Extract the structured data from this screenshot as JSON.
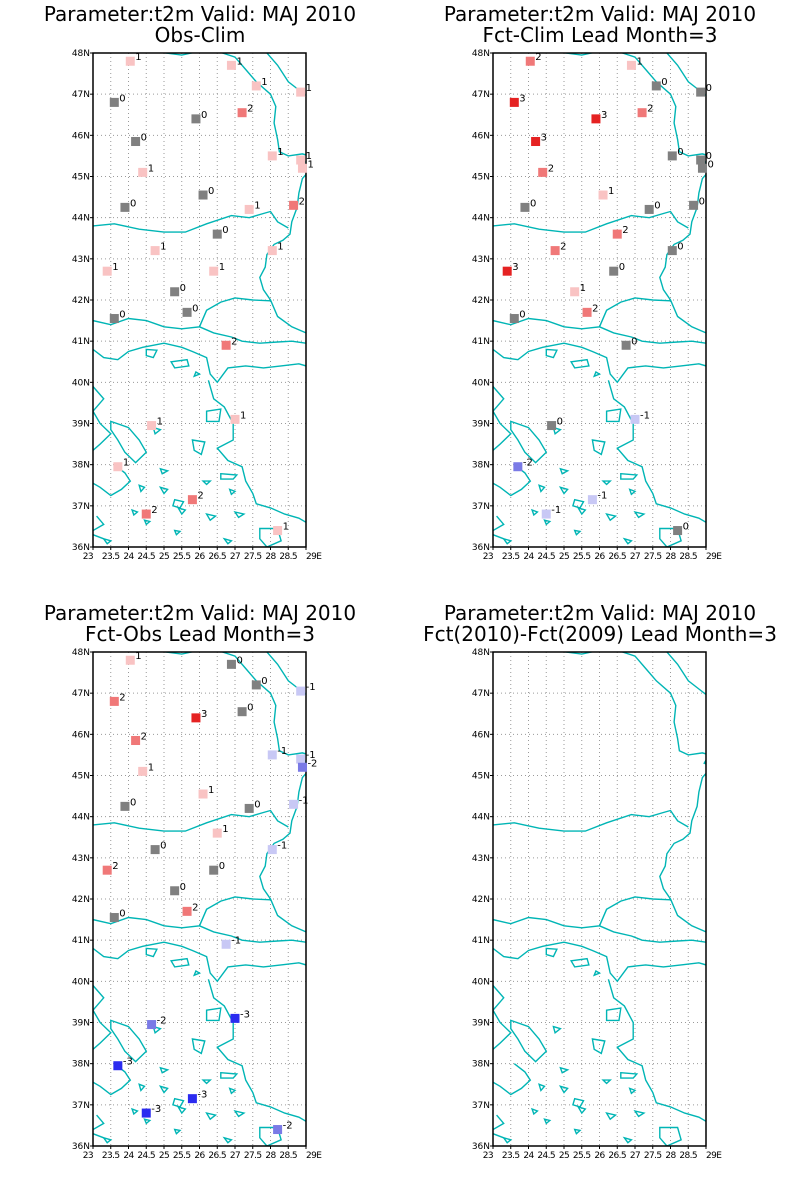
{
  "colors": {
    "coast": "#00b5b5",
    "grid": "#9a9a9a",
    "frame": "#000000",
    "zero": "#808080",
    "pos1": "#f9c3c3",
    "pos2": "#f07878",
    "pos3": "#e52222",
    "neg1": "#c8c8f5",
    "neg2": "#7a7ae6",
    "neg3": "#2b2bf0"
  },
  "axes": {
    "lat_labels": [
      "36N",
      "37N",
      "38N",
      "39N",
      "40N",
      "41N",
      "42N",
      "43N",
      "44N",
      "45N",
      "46N",
      "47N",
      "48N"
    ],
    "lon_labels": [
      "23",
      "23.5",
      "24",
      "24.5",
      "25",
      "25.5",
      "26",
      "26.5",
      "27",
      "27.5",
      "28",
      "28.5",
      "29E"
    ],
    "lat_range": [
      36,
      48
    ],
    "lon_range": [
      23,
      29
    ]
  },
  "panels": [
    {
      "title1": "Parameter:t2m Valid: MAJ 2010",
      "title2": "Obs-Clim",
      "stations": [
        {
          "lon": 24.05,
          "lat": 47.8,
          "v": 1
        },
        {
          "lon": 26.9,
          "lat": 47.7,
          "v": 1
        },
        {
          "lon": 27.6,
          "lat": 47.2,
          "v": 1
        },
        {
          "lon": 28.85,
          "lat": 47.05,
          "v": 1
        },
        {
          "lon": 23.6,
          "lat": 46.8,
          "v": 0
        },
        {
          "lon": 25.9,
          "lat": 46.4,
          "v": 0
        },
        {
          "lon": 27.2,
          "lat": 46.55,
          "v": 2
        },
        {
          "lon": 24.2,
          "lat": 45.85,
          "v": 0
        },
        {
          "lon": 28.05,
          "lat": 45.5,
          "v": 1
        },
        {
          "lon": 28.85,
          "lat": 45.4,
          "v": 1
        },
        {
          "lon": 28.9,
          "lat": 45.2,
          "v": 1
        },
        {
          "lon": 24.4,
          "lat": 45.1,
          "v": 1
        },
        {
          "lon": 26.1,
          "lat": 44.55,
          "v": 0
        },
        {
          "lon": 23.9,
          "lat": 44.25,
          "v": 0
        },
        {
          "lon": 27.4,
          "lat": 44.2,
          "v": 1
        },
        {
          "lon": 28.65,
          "lat": 44.3,
          "v": 2
        },
        {
          "lon": 26.5,
          "lat": 43.6,
          "v": 0
        },
        {
          "lon": 24.75,
          "lat": 43.2,
          "v": 1
        },
        {
          "lon": 28.05,
          "lat": 43.2,
          "v": 1
        },
        {
          "lon": 23.4,
          "lat": 42.7,
          "v": 1
        },
        {
          "lon": 26.4,
          "lat": 42.7,
          "v": 1
        },
        {
          "lon": 25.3,
          "lat": 42.2,
          "v": 0
        },
        {
          "lon": 25.65,
          "lat": 41.7,
          "v": 0
        },
        {
          "lon": 23.6,
          "lat": 41.55,
          "v": 0
        },
        {
          "lon": 26.75,
          "lat": 40.9,
          "v": 2
        },
        {
          "lon": 24.65,
          "lat": 38.95,
          "v": 1
        },
        {
          "lon": 27.0,
          "lat": 39.1,
          "v": 1
        },
        {
          "lon": 23.7,
          "lat": 37.95,
          "v": 1
        },
        {
          "lon": 25.8,
          "lat": 37.15,
          "v": 2
        },
        {
          "lon": 24.5,
          "lat": 36.8,
          "v": 2
        },
        {
          "lon": 28.2,
          "lat": 36.4,
          "v": 1
        }
      ]
    },
    {
      "title1": "Parameter:t2m Valid: MAJ 2010",
      "title2": "Fct-Clim Lead Month=3",
      "stations": [
        {
          "lon": 24.05,
          "lat": 47.8,
          "v": 2
        },
        {
          "lon": 26.9,
          "lat": 47.7,
          "v": 1
        },
        {
          "lon": 27.6,
          "lat": 47.2,
          "v": 0
        },
        {
          "lon": 28.85,
          "lat": 47.05,
          "v": 0
        },
        {
          "lon": 23.6,
          "lat": 46.8,
          "v": 3
        },
        {
          "lon": 25.9,
          "lat": 46.4,
          "v": 3
        },
        {
          "lon": 27.2,
          "lat": 46.55,
          "v": 2
        },
        {
          "lon": 24.2,
          "lat": 45.85,
          "v": 3
        },
        {
          "lon": 28.05,
          "lat": 45.5,
          "v": 0
        },
        {
          "lon": 28.85,
          "lat": 45.4,
          "v": 0
        },
        {
          "lon": 28.9,
          "lat": 45.2,
          "v": 0
        },
        {
          "lon": 24.4,
          "lat": 45.1,
          "v": 2
        },
        {
          "lon": 26.1,
          "lat": 44.55,
          "v": 1
        },
        {
          "lon": 23.9,
          "lat": 44.25,
          "v": 0
        },
        {
          "lon": 27.4,
          "lat": 44.2,
          "v": 0
        },
        {
          "lon": 28.65,
          "lat": 44.3,
          "v": 0
        },
        {
          "lon": 26.5,
          "lat": 43.6,
          "v": 2
        },
        {
          "lon": 24.75,
          "lat": 43.2,
          "v": 2
        },
        {
          "lon": 28.05,
          "lat": 43.2,
          "v": 0
        },
        {
          "lon": 23.4,
          "lat": 42.7,
          "v": 3
        },
        {
          "lon": 26.4,
          "lat": 42.7,
          "v": 0
        },
        {
          "lon": 25.3,
          "lat": 42.2,
          "v": 1
        },
        {
          "lon": 25.65,
          "lat": 41.7,
          "v": 2
        },
        {
          "lon": 23.6,
          "lat": 41.55,
          "v": 0
        },
        {
          "lon": 26.75,
          "lat": 40.9,
          "v": 0
        },
        {
          "lon": 24.65,
          "lat": 38.95,
          "v": 0
        },
        {
          "lon": 27.0,
          "lat": 39.1,
          "v": -1
        },
        {
          "lon": 23.7,
          "lat": 37.95,
          "v": -2
        },
        {
          "lon": 25.8,
          "lat": 37.15,
          "v": -1
        },
        {
          "lon": 24.5,
          "lat": 36.8,
          "v": -1
        },
        {
          "lon": 28.2,
          "lat": 36.4,
          "v": 0
        }
      ]
    },
    {
      "title1": "Parameter:t2m Valid: MAJ 2010",
      "title2": "Fct-Obs Lead Month=3",
      "stations": [
        {
          "lon": 24.05,
          "lat": 47.8,
          "v": 1
        },
        {
          "lon": 26.9,
          "lat": 47.7,
          "v": 0
        },
        {
          "lon": 27.6,
          "lat": 47.2,
          "v": 0
        },
        {
          "lon": 28.85,
          "lat": 47.05,
          "v": -1
        },
        {
          "lon": 23.6,
          "lat": 46.8,
          "v": 2
        },
        {
          "lon": 25.9,
          "lat": 46.4,
          "v": 3
        },
        {
          "lon": 27.2,
          "lat": 46.55,
          "v": 0
        },
        {
          "lon": 24.2,
          "lat": 45.85,
          "v": 2
        },
        {
          "lon": 28.05,
          "lat": 45.5,
          "v": -1
        },
        {
          "lon": 28.85,
          "lat": 45.4,
          "v": -1
        },
        {
          "lon": 28.9,
          "lat": 45.2,
          "v": -2
        },
        {
          "lon": 24.4,
          "lat": 45.1,
          "v": 1
        },
        {
          "lon": 26.1,
          "lat": 44.55,
          "v": 1
        },
        {
          "lon": 23.9,
          "lat": 44.25,
          "v": 0
        },
        {
          "lon": 27.4,
          "lat": 44.2,
          "v": 0
        },
        {
          "lon": 28.65,
          "lat": 44.3,
          "v": -1
        },
        {
          "lon": 26.5,
          "lat": 43.6,
          "v": 1
        },
        {
          "lon": 24.75,
          "lat": 43.2,
          "v": 0
        },
        {
          "lon": 28.05,
          "lat": 43.2,
          "v": -1
        },
        {
          "lon": 23.4,
          "lat": 42.7,
          "v": 2
        },
        {
          "lon": 26.4,
          "lat": 42.7,
          "v": 0
        },
        {
          "lon": 25.3,
          "lat": 42.2,
          "v": 0
        },
        {
          "lon": 25.65,
          "lat": 41.7,
          "v": 2
        },
        {
          "lon": 23.6,
          "lat": 41.55,
          "v": 0
        },
        {
          "lon": 26.75,
          "lat": 40.9,
          "v": -1
        },
        {
          "lon": 24.65,
          "lat": 38.95,
          "v": -2
        },
        {
          "lon": 27.0,
          "lat": 39.1,
          "v": -3
        },
        {
          "lon": 23.7,
          "lat": 37.95,
          "v": -3
        },
        {
          "lon": 25.8,
          "lat": 37.15,
          "v": -3
        },
        {
          "lon": 24.5,
          "lat": 36.8,
          "v": -3
        },
        {
          "lon": 28.2,
          "lat": 36.4,
          "v": -2
        }
      ]
    },
    {
      "title1": "Parameter:t2m Valid: MAJ 2010",
      "title2": "Fct(2010)-Fct(2009) Lead Month=3",
      "stations": []
    }
  ]
}
